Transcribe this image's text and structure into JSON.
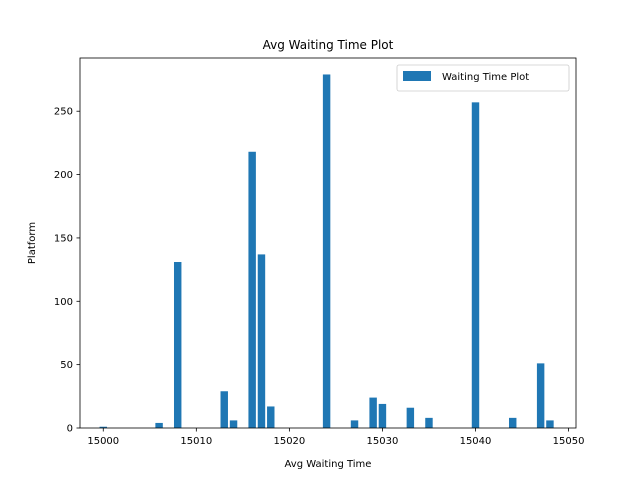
{
  "chart_data": {
    "type": "bar",
    "title": "Avg Waiting Time Plot",
    "xlabel": "Avg Waiting Time",
    "ylabel": "Platform",
    "xlim": [
      14997.5,
      15050.8
    ],
    "ylim": [
      0,
      292
    ],
    "xticks": [
      15000,
      15010,
      15020,
      15030,
      15040,
      15050
    ],
    "yticks": [
      0,
      50,
      100,
      150,
      200,
      250
    ],
    "bar_width": 0.8,
    "grid": false,
    "legend_position": "top-right",
    "series": [
      {
        "name": "Waiting Time Plot",
        "color": "#1f77b4",
        "x": [
          15000,
          15006,
          15008,
          15013,
          15014,
          15016,
          15017,
          15018,
          15024,
          15027,
          15029,
          15030,
          15033,
          15035,
          15040,
          15044,
          15047,
          15048
        ],
        "y": [
          1,
          4,
          131,
          29,
          6,
          218,
          137,
          17,
          279,
          6,
          24,
          19,
          16,
          8,
          257,
          8,
          51,
          6
        ]
      }
    ]
  }
}
